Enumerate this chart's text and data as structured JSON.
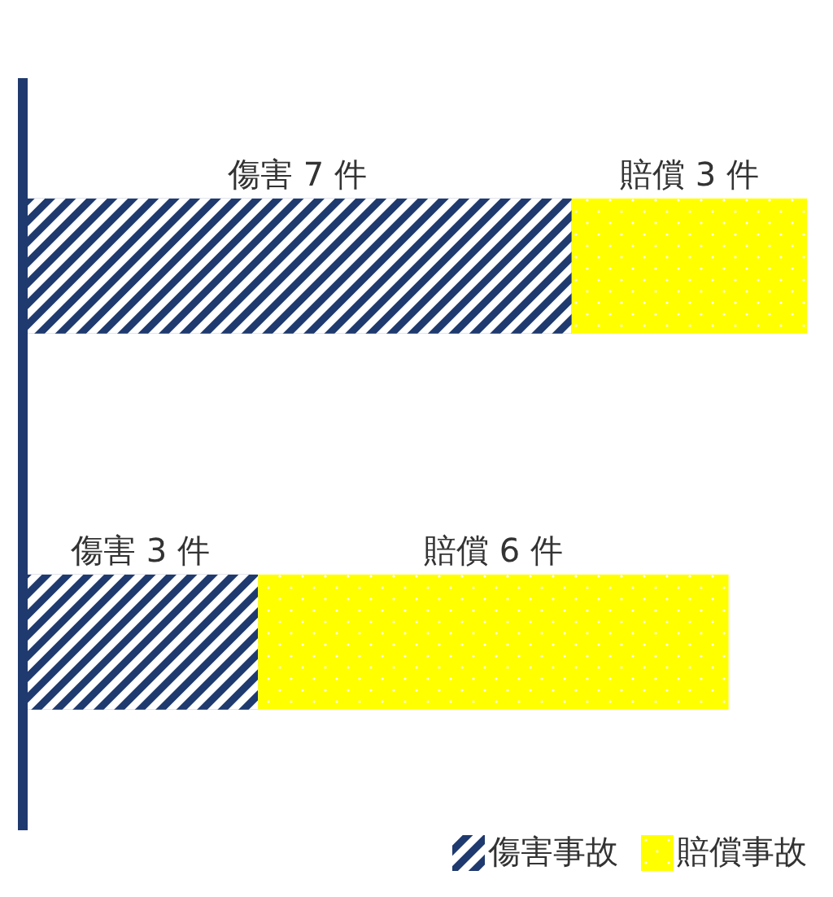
{
  "chart_data": {
    "type": "bar",
    "orientation": "horizontal",
    "stacked": true,
    "categories": [
      null,
      null
    ],
    "legend": "bottom right",
    "series": [
      {
        "name": "傷害事故",
        "color": "#1f3a6e",
        "values": [
          7,
          3
        ],
        "value_labels": [
          "傷害 7 件",
          "傷害 3 件"
        ]
      },
      {
        "name": "賠償事故",
        "color": "#ffff00",
        "values": [
          3,
          6
        ],
        "value_labels": [
          "賠償 3 件",
          "賠償 6 件"
        ]
      }
    ]
  }
}
